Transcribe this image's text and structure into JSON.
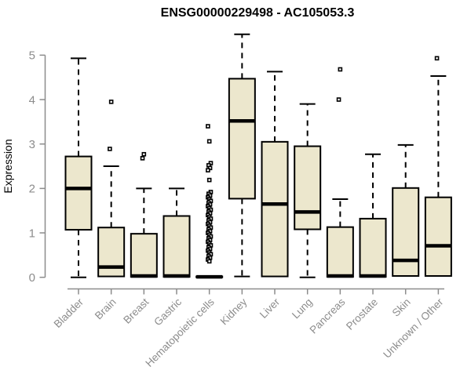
{
  "title": "ENSG00000229498 - AC105053.3",
  "colors": {
    "box_fill": "#ECE7CD",
    "box_stroke": "#000000",
    "median": "#000000",
    "axis": "#8C8C8C",
    "tick_label": "#8C8C8C",
    "title": "#000000",
    "background": "#FFFFFF"
  },
  "chart_data": {
    "type": "boxplot",
    "title": "ENSG00000229498 - AC105053.3",
    "xlabel": "",
    "ylabel": "Expression",
    "ylim": [
      0,
      5
    ],
    "yticks": [
      0,
      1,
      2,
      3,
      4,
      5
    ],
    "grid": false,
    "legend": false,
    "categories": [
      "Bladder",
      "Brain",
      "Breast",
      "Gastric",
      "Hematopoietic cells",
      "Kidney",
      "Liver",
      "Lung",
      "Pancreas",
      "Prostate",
      "Skin",
      "Unknown / Other"
    ],
    "series": [
      {
        "name": "Bladder",
        "low": 0.0,
        "q1": 1.07,
        "median": 2.0,
        "q3": 2.72,
        "high": 4.93,
        "outliers": []
      },
      {
        "name": "Brain",
        "low": 0.02,
        "q1": 0.02,
        "median": 0.23,
        "q3": 1.12,
        "high": 2.5,
        "outliers": [
          2.89,
          3.95
        ]
      },
      {
        "name": "Breast",
        "low": 0.01,
        "q1": 0.01,
        "median": 0.03,
        "q3": 0.98,
        "high": 2.0,
        "outliers": [
          2.68,
          2.77
        ]
      },
      {
        "name": "Gastric",
        "low": 0.01,
        "q1": 0.01,
        "median": 0.03,
        "q3": 1.38,
        "high": 2.0,
        "outliers": []
      },
      {
        "name": "Hematopoietic cells",
        "low": 0.0,
        "q1": 0.0,
        "median": 0.01,
        "q3": 0.02,
        "high": 0.02,
        "outliers": [
          3.4,
          3.06,
          2.57,
          2.52,
          2.46,
          2.41,
          2.19,
          1.92,
          1.88,
          1.84,
          1.8,
          1.76,
          1.72,
          1.68,
          1.64,
          1.6,
          1.56,
          1.52,
          1.48,
          1.44,
          1.4,
          1.36,
          1.32,
          1.28,
          1.24,
          1.2,
          1.16,
          1.12,
          1.08,
          1.04,
          1.0,
          0.96,
          0.92,
          0.88,
          0.84,
          0.8,
          0.76,
          0.72,
          0.68,
          0.64,
          0.6,
          0.56,
          0.52,
          0.48,
          0.44,
          0.4,
          0.36
        ]
      },
      {
        "name": "Kidney",
        "low": 0.02,
        "q1": 1.77,
        "median": 3.52,
        "q3": 4.47,
        "high": 5.47,
        "outliers": []
      },
      {
        "name": "Liver",
        "low": 0.02,
        "q1": 0.02,
        "median": 1.65,
        "q3": 3.05,
        "high": 4.63,
        "outliers": []
      },
      {
        "name": "Lung",
        "low": 0.0,
        "q1": 1.08,
        "median": 1.47,
        "q3": 2.95,
        "high": 3.9,
        "outliers": []
      },
      {
        "name": "Pancreas",
        "low": 0.01,
        "q1": 0.01,
        "median": 0.03,
        "q3": 1.13,
        "high": 1.76,
        "outliers": [
          4.0,
          4.68
        ]
      },
      {
        "name": "Prostate",
        "low": 0.01,
        "q1": 0.01,
        "median": 0.03,
        "q3": 1.32,
        "high": 2.77,
        "outliers": []
      },
      {
        "name": "Skin",
        "low": 0.03,
        "q1": 0.03,
        "median": 0.38,
        "q3": 2.01,
        "high": 2.98,
        "outliers": []
      },
      {
        "name": "Unknown / Other",
        "low": 0.03,
        "q1": 0.03,
        "median": 0.71,
        "q3": 1.8,
        "high": 4.53,
        "outliers": [
          4.93
        ]
      }
    ]
  }
}
